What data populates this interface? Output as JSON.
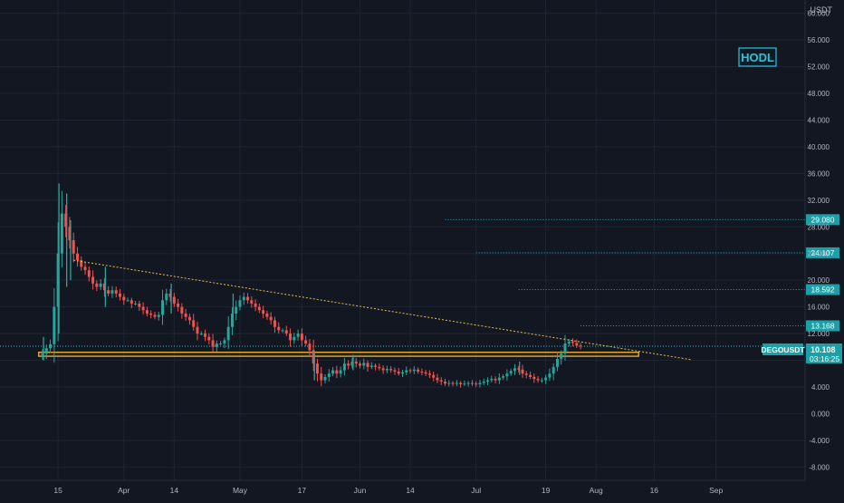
{
  "chart_data": {
    "type": "candlestick",
    "symbol_badge": "DEGOUSDT",
    "currency_label": "USDT",
    "annotation": "HODL",
    "last_price": "10.108",
    "countdown": "03:16:25",
    "y_ticks": [
      "60.000",
      "56.000",
      "52.000",
      "48.000",
      "44.000",
      "40.000",
      "36.000",
      "32.000",
      "28.000",
      "24.000",
      "20.000",
      "16.000",
      "12.000",
      "8.000",
      "4.000",
      "0.000",
      "-4.000",
      "-8.000"
    ],
    "y_tick_values": [
      60,
      56,
      52,
      48,
      44,
      40,
      36,
      32,
      28,
      24,
      20,
      16,
      12,
      8,
      4,
      0,
      -4,
      -8
    ],
    "ylim": [
      -10,
      62
    ],
    "x_ticks": [
      {
        "label": "15",
        "day": 15
      },
      {
        "label": "Apr",
        "day": 32
      },
      {
        "label": "14",
        "day": 45
      },
      {
        "label": "May",
        "day": 62
      },
      {
        "label": "17",
        "day": 78
      },
      {
        "label": "Jun",
        "day": 93
      },
      {
        "label": "14",
        "day": 106
      },
      {
        "label": "Jul",
        "day": 123
      },
      {
        "label": "19",
        "day": 141
      },
      {
        "label": "Aug",
        "day": 154
      },
      {
        "label": "16",
        "day": 169
      },
      {
        "label": "Sep",
        "day": 185
      }
    ],
    "xlim": [
      0,
      208
    ],
    "target_labels": [
      "29.080",
      "24.107",
      "18.592",
      "13.168"
    ],
    "target_values": [
      29.08,
      24.107,
      18.592,
      13.168
    ],
    "target_start_days": [
      115,
      123,
      134,
      150
    ],
    "support_zone": {
      "low": 8.6,
      "high": 9.2,
      "from_day": 10,
      "to_day": 165
    },
    "trendline": {
      "from": [
        19,
        23
      ],
      "to": [
        172,
        8.7
      ]
    },
    "price_path": [
      [
        10,
        8.5
      ],
      [
        11,
        9.0
      ],
      [
        12,
        9.8
      ],
      [
        13,
        10.4
      ],
      [
        14,
        16
      ],
      [
        15,
        24
      ],
      [
        16,
        30
      ],
      [
        17,
        28
      ],
      [
        18,
        26
      ],
      [
        19,
        24
      ],
      [
        20,
        23
      ],
      [
        21,
        22
      ],
      [
        22,
        21.5
      ],
      [
        23,
        20.5
      ],
      [
        24,
        19.5
      ],
      [
        25,
        19
      ],
      [
        26,
        19.5
      ],
      [
        27,
        18.5
      ],
      [
        28,
        18
      ],
      [
        29,
        18.5
      ],
      [
        30,
        18
      ],
      [
        31,
        17.5
      ],
      [
        32,
        17
      ],
      [
        33,
        17
      ],
      [
        34,
        16.5
      ],
      [
        35,
        16.5
      ],
      [
        36,
        16
      ],
      [
        37,
        15.5
      ],
      [
        38,
        15
      ],
      [
        39,
        14.8
      ],
      [
        40,
        14.5
      ],
      [
        41,
        14.8
      ],
      [
        42,
        17
      ],
      [
        43,
        18
      ],
      [
        44,
        17.5
      ],
      [
        45,
        16.5
      ],
      [
        46,
        16
      ],
      [
        47,
        15
      ],
      [
        48,
        14.5
      ],
      [
        49,
        14
      ],
      [
        50,
        13
      ],
      [
        51,
        12
      ],
      [
        52,
        12
      ],
      [
        53,
        11.5
      ],
      [
        54,
        11
      ],
      [
        55,
        10
      ],
      [
        56,
        10.5
      ],
      [
        57,
        10.5
      ],
      [
        58,
        11
      ],
      [
        59,
        13
      ],
      [
        60,
        15
      ],
      [
        61,
        16
      ],
      [
        62,
        17
      ],
      [
        63,
        17.5
      ],
      [
        64,
        17
      ],
      [
        65,
        16.5
      ],
      [
        66,
        16
      ],
      [
        67,
        15.5
      ],
      [
        68,
        15
      ],
      [
        69,
        14.5
      ],
      [
        70,
        14
      ],
      [
        71,
        13
      ],
      [
        72,
        12.5
      ],
      [
        73,
        12.5
      ],
      [
        74,
        12
      ],
      [
        75,
        11
      ],
      [
        76,
        11.5
      ],
      [
        77,
        12
      ],
      [
        78,
        11
      ],
      [
        79,
        10.5
      ],
      [
        80,
        9.5
      ],
      [
        81,
        7.5
      ],
      [
        82,
        6.0
      ],
      [
        83,
        5.0
      ],
      [
        84,
        5.5
      ],
      [
        85,
        6.0
      ],
      [
        86,
        6.5
      ],
      [
        87,
        6.0
      ],
      [
        88,
        6.5
      ],
      [
        89,
        7.5
      ],
      [
        90,
        7.2
      ],
      [
        91,
        7.8
      ],
      [
        92,
        7.5
      ],
      [
        93,
        7.2
      ],
      [
        94,
        7.6
      ],
      [
        95,
        7.0
      ],
      [
        96,
        7.2
      ],
      [
        97,
        7.0
      ],
      [
        98,
        6.8
      ],
      [
        99,
        6.5
      ],
      [
        100,
        6.7
      ],
      [
        101,
        6.5
      ],
      [
        102,
        6.3
      ],
      [
        103,
        6.0
      ],
      [
        104,
        6.2
      ],
      [
        105,
        6.5
      ],
      [
        106,
        6.4
      ],
      [
        107,
        6.6
      ],
      [
        108,
        6.3
      ],
      [
        109,
        6.2
      ],
      [
        110,
        6.0
      ],
      [
        111,
        5.8
      ],
      [
        112,
        5.4
      ],
      [
        113,
        5.0
      ],
      [
        114,
        4.8
      ],
      [
        115,
        4.5
      ],
      [
        116,
        4.6
      ],
      [
        117,
        4.5
      ],
      [
        118,
        4.6
      ],
      [
        119,
        4.4
      ],
      [
        120,
        4.5
      ],
      [
        121,
        4.6
      ],
      [
        122,
        4.5
      ],
      [
        123,
        4.4
      ],
      [
        124,
        4.6
      ],
      [
        125,
        4.8
      ],
      [
        126,
        5.0
      ],
      [
        127,
        5.2
      ],
      [
        128,
        5.0
      ],
      [
        129,
        5.4
      ],
      [
        130,
        5.6
      ],
      [
        131,
        6.0
      ],
      [
        132,
        6.4
      ],
      [
        133,
        6.8
      ],
      [
        134,
        6.6
      ],
      [
        135,
        6.0
      ],
      [
        136,
        5.8
      ],
      [
        137,
        5.5
      ],
      [
        138,
        5.2
      ],
      [
        139,
        5.0
      ],
      [
        140,
        5.0
      ],
      [
        141,
        5.4
      ],
      [
        142,
        6.0
      ],
      [
        143,
        7.0
      ],
      [
        144,
        8.2
      ],
      [
        145,
        9.0
      ],
      [
        146,
        10.5
      ],
      [
        147,
        10.8
      ],
      [
        148,
        10.6
      ],
      [
        149,
        10.2
      ],
      [
        150,
        10.1
      ]
    ],
    "spikes": [
      [
        11,
        8.0,
        11.5
      ],
      [
        15,
        12,
        34.5
      ],
      [
        17,
        19,
        33
      ],
      [
        18,
        20,
        29
      ],
      [
        27,
        16,
        22
      ],
      [
        44,
        15,
        19.5
      ],
      [
        60,
        13,
        18
      ],
      [
        81,
        5.0,
        9.5
      ],
      [
        91,
        6.5,
        8.8
      ],
      [
        134,
        5.8,
        7.8
      ]
    ]
  },
  "colors": {
    "background": "#131722",
    "grid": "#1f2433",
    "text": "#b2b5be",
    "up": "#26a69a",
    "down": "#ef5350",
    "zone": "#f0b43c",
    "trend": "#e0c24a",
    "accent": "#26c6da",
    "badge": "#1ba0a8"
  }
}
